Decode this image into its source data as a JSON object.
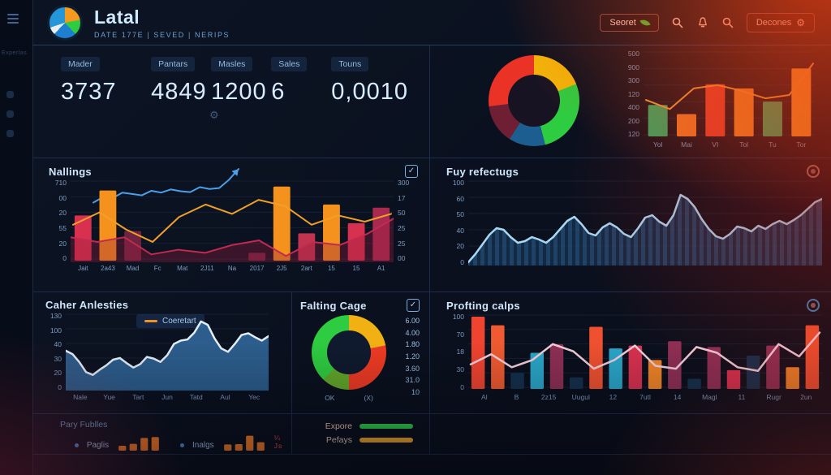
{
  "app": {
    "title": "Latal",
    "subtitle": "DATE 177E | SEVED | NERips"
  },
  "header": {
    "search_button": "Seoret",
    "settings_button": "Decones"
  },
  "sidebar": {
    "edge_label": "Experlas"
  },
  "icons": {
    "check": "✓",
    "gear": "⚙"
  },
  "theme": {
    "accent_blue": "#4aa0e8",
    "glow_red": "#e8391a",
    "panel_line": "#1e2d4b",
    "green": "#2ecc40",
    "orange": "#f08c28"
  },
  "kpis": [
    {
      "label": "Mader",
      "value": "3737"
    },
    {
      "label": "Pantars",
      "value": "4849"
    },
    {
      "label": "Masles",
      "value": "1200"
    },
    {
      "label": "Sales",
      "value": "6"
    },
    {
      "label": "Touns",
      "value": "0,0010"
    }
  ],
  "sections": {
    "nallings": {
      "title": "Nallings"
    },
    "fuy": {
      "title": "Fuy refectugs"
    },
    "caher": {
      "title": "Caher Anlesties",
      "legend": "Coeretart"
    },
    "falting": {
      "title": "Falting Cage"
    },
    "profting": {
      "title": "Profting calps"
    },
    "pary": {
      "title": "Pary Fublles",
      "legend1": "Paglis",
      "legend2": "Inalgs",
      "badge": "¼ Js"
    },
    "export_legend": {
      "item1": "Expore",
      "item2": "Pefays"
    }
  },
  "charts": {
    "spark": {
      "type": "line",
      "max": 100,
      "lines": [
        {
          "color": "#4aa0e8",
          "width": 2,
          "arrow": true,
          "values": [
            8,
            20,
            18,
            30,
            27,
            24,
            34,
            30,
            37,
            33,
            31,
            42,
            38,
            40,
            58,
            82
          ]
        }
      ]
    },
    "top_donut": {
      "type": "donut",
      "hole": "#181323",
      "slices": [
        {
          "label": "yellow",
          "value": 19,
          "color": "#f2b40a"
        },
        {
          "label": "green",
          "value": 27,
          "color": "#2ecc40"
        },
        {
          "label": "blue",
          "value": 13,
          "color": "#1c5e8f"
        },
        {
          "label": "maroon",
          "value": 14,
          "color": "#6e1f33"
        },
        {
          "label": "red",
          "value": 27,
          "color": "#ea3326"
        }
      ]
    },
    "top_bars": {
      "type": "combo",
      "max": 100,
      "grid": 5,
      "y_labels": [
        "500",
        "900",
        "300",
        "120",
        "400",
        "200",
        "120"
      ],
      "categories": [
        "Yol",
        "Mai",
        "VI",
        "Tol",
        "Tu",
        "Tor"
      ],
      "bars": [
        {
          "v": 38,
          "c": "#2fae68"
        },
        {
          "v": 27,
          "c": "#ef7f2a"
        },
        {
          "v": 63,
          "c": "#e54530"
        },
        {
          "v": 58,
          "c": "#f08c28"
        },
        {
          "v": 42,
          "c": "#2fae68"
        },
        {
          "v": 82,
          "c": "#f59a2a"
        }
      ],
      "lines": [
        {
          "color": "#f2a33a",
          "width": 2,
          "values": [
            44,
            33,
            58,
            62,
            55,
            46,
            50,
            88
          ]
        }
      ]
    },
    "nallings": {
      "type": "combo",
      "max": 100,
      "grid": 5,
      "y_left": [
        "710",
        "00",
        "20",
        "55",
        "20",
        "0"
      ],
      "y_right": [
        "300",
        "17",
        "50",
        "25",
        "25",
        "00"
      ],
      "categories": [
        "Jait",
        "2a43",
        "Mad",
        "Fc",
        "Mat",
        "2J11",
        "Na",
        "2017",
        "2J5",
        "2art",
        "15",
        "15",
        "A1"
      ],
      "bars": [
        {
          "v": 58,
          "c": "#d8314f"
        },
        {
          "v": 90,
          "c": "#f5921e"
        },
        {
          "v": 38,
          "c": "#6e2340"
        },
        {
          "v": 0
        },
        {
          "v": 0
        },
        {
          "v": 0
        },
        {
          "v": 0
        },
        {
          "v": 10,
          "c": "#6e2340"
        },
        {
          "v": 95,
          "c": "#f5921e"
        },
        {
          "v": 35,
          "c": "#c23350"
        },
        {
          "v": 72,
          "c": "#f5921e"
        },
        {
          "v": 48,
          "c": "#d8314f"
        },
        {
          "v": 68,
          "c": "#a82a50"
        }
      ],
      "area": {
        "fill": "rgba(150,30,60,0.35)",
        "stroke": "#c22a50",
        "width": 2,
        "values": [
          30,
          24,
          30,
          8,
          14,
          10,
          20,
          26,
          6,
          24,
          20,
          34,
          54
        ]
      },
      "lines": [
        {
          "color": "#f0a028",
          "width": 2,
          "values": [
            46,
            62,
            40,
            24,
            56,
            72,
            60,
            78,
            70,
            46,
            58,
            50,
            60
          ]
        }
      ]
    },
    "fuy": {
      "type": "area",
      "max": 100,
      "grid": 5,
      "y_labels": [
        "100",
        "60",
        "50",
        "40",
        "20",
        "0"
      ],
      "area": {
        "fill": "rgba(44,98,150,0.6)",
        "stroke": "#a8d8f2",
        "width": 2.5,
        "stripes": true,
        "values": [
          2,
          12,
          24,
          36,
          44,
          42,
          33,
          26,
          28,
          33,
          30,
          26,
          33,
          43,
          53,
          58,
          49,
          38,
          35,
          45,
          50,
          45,
          37,
          33,
          44,
          57,
          60,
          52,
          47,
          60,
          85,
          80,
          70,
          55,
          43,
          34,
          31,
          37,
          46,
          44,
          40,
          47,
          43,
          49,
          53,
          49,
          54,
          60,
          68,
          76,
          80
        ]
      }
    },
    "caher": {
      "type": "area",
      "max": 130,
      "grid": 5,
      "y_labels": [
        "130",
        "100",
        "40",
        "30",
        "20",
        "0"
      ],
      "categories": [
        "Nale",
        "Yue",
        "Tart",
        "Jun",
        "Tatd",
        "Aul",
        "Yec"
      ],
      "area": {
        "fill": "rgba(52,112,168,0.8)",
        "stroke": "#e4eef8",
        "width": 2.5,
        "values": [
          68,
          62,
          48,
          30,
          25,
          34,
          42,
          52,
          55,
          46,
          38,
          44,
          57,
          54,
          48,
          60,
          80,
          86,
          88,
          100,
          120,
          114,
          90,
          72,
          66,
          80,
          96,
          99,
          92,
          86,
          94
        ]
      }
    },
    "falting": {
      "type": "donut",
      "hole": "#101a2e",
      "side_values": [
        "6.00",
        "4.00",
        "1.80",
        "1.20",
        "3.60",
        "31.0",
        "10"
      ],
      "bottom_labels": [
        "OK",
        "(X)"
      ],
      "slices": [
        {
          "label": "yellow",
          "value": 22,
          "color": "#f2b113"
        },
        {
          "label": "red",
          "value": 28,
          "color": "#ef3b24"
        },
        {
          "label": "olive",
          "value": 12,
          "color": "#63a82a"
        },
        {
          "label": "green",
          "value": 38,
          "color": "#2ecc40"
        }
      ]
    },
    "profting": {
      "type": "combo",
      "max": 100,
      "grid": 5,
      "y_labels": [
        "100",
        "70",
        "18",
        "30",
        "0"
      ],
      "categories": [
        "Al",
        "B",
        "2z15",
        "Uugul",
        "12",
        "7utl",
        "14",
        "Magl",
        "11",
        "Rugr",
        "2un"
      ],
      "bars": [
        {
          "v": 100,
          "c": "#ef4430"
        },
        {
          "v": 88,
          "c": "#ef5a30"
        },
        {
          "v": 22,
          "c": "#14304d"
        },
        {
          "v": 50,
          "c": "#2aa6c9"
        },
        {
          "v": 62,
          "c": "#8e2f55"
        },
        {
          "v": 16,
          "c": "#14304d"
        },
        {
          "v": 86,
          "c": "#ef5130"
        },
        {
          "v": 56,
          "c": "#2aa6c9"
        },
        {
          "v": 60,
          "c": "#d8314f"
        },
        {
          "v": 40,
          "c": "#f08428"
        },
        {
          "v": 66,
          "c": "#8e2f55"
        },
        {
          "v": 14,
          "c": "#14304d"
        },
        {
          "v": 58,
          "c": "#8e2f55"
        },
        {
          "v": 26,
          "c": "#d8314f"
        },
        {
          "v": 46,
          "c": "#14304d"
        },
        {
          "v": 60,
          "c": "#8e2f55"
        },
        {
          "v": 30,
          "c": "#f08428"
        },
        {
          "v": 88,
          "c": "#ef5130"
        }
      ],
      "lines": [
        {
          "color": "#f2cdd9",
          "width": 2.5,
          "values": [
            34,
            48,
            30,
            40,
            62,
            52,
            28,
            40,
            60,
            32,
            28,
            58,
            50,
            30,
            25,
            62,
            45,
            78
          ]
        }
      ]
    },
    "paglis_bars": {
      "type": "bars",
      "max": 100,
      "bars": [
        {
          "v": 30,
          "c": "#f07a2a"
        },
        {
          "v": 42,
          "c": "#f07a2a"
        },
        {
          "v": 78,
          "c": "#f07a2a"
        },
        {
          "v": 84,
          "c": "#f07a2a"
        }
      ]
    },
    "inalgs_bars": {
      "type": "bars",
      "max": 100,
      "bars": [
        {
          "v": 38,
          "c": "#f07a2a"
        },
        {
          "v": 40,
          "c": "#f07a2a"
        },
        {
          "v": 92,
          "c": "#f07a2a"
        },
        {
          "v": 52,
          "c": "#f07a2a"
        }
      ]
    }
  }
}
